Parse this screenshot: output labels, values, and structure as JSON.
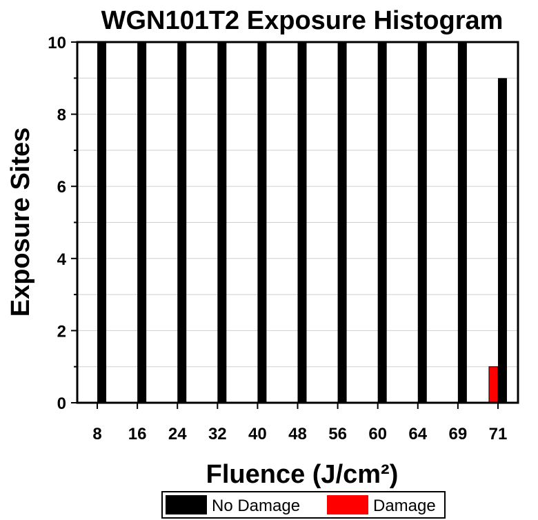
{
  "chart_data": {
    "type": "bar",
    "title": "WGN101T2 Exposure Histogram",
    "xlabel": "Fluence (J/cm²)",
    "ylabel": "Exposure Sites",
    "categories": [
      "8",
      "16",
      "24",
      "32",
      "40",
      "48",
      "56",
      "60",
      "64",
      "69",
      "71"
    ],
    "series": [
      {
        "name": "No Damage",
        "color": "#000000",
        "values": [
          10,
          10,
          10,
          10,
          10,
          10,
          10,
          10,
          10,
          10,
          9
        ]
      },
      {
        "name": "Damage",
        "color": "#ff0000",
        "values": [
          0,
          0,
          0,
          0,
          0,
          0,
          0,
          0,
          0,
          0,
          1
        ]
      }
    ],
    "ylim": [
      0,
      10
    ],
    "yticks": [
      0,
      2,
      4,
      6,
      8,
      10
    ],
    "grid": true,
    "legend": "bottom"
  }
}
